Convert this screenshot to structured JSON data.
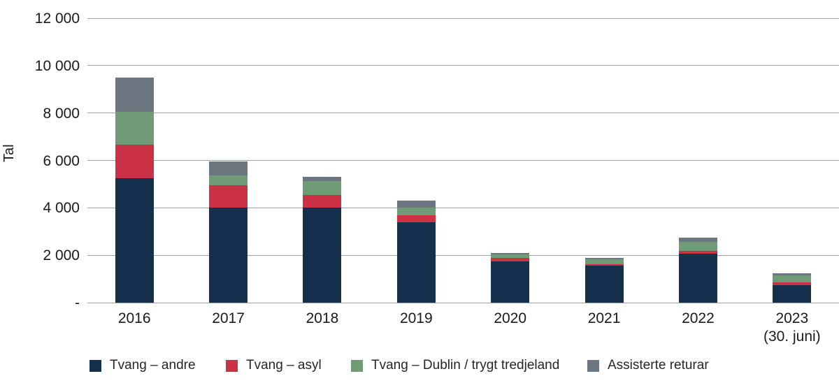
{
  "chart_data": {
    "type": "bar",
    "stacked": true,
    "title": "",
    "xlabel": "",
    "ylabel": "Tal",
    "ylim": [
      0,
      12000
    ],
    "ytick_interval": 2000,
    "ytick_labels": [
      "-",
      "2 000",
      "4 000",
      "6 000",
      "8 000",
      "10 000",
      "12 000"
    ],
    "grid": true,
    "legend_position": "bottom",
    "categories": [
      {
        "label": "2016",
        "sublabel": ""
      },
      {
        "label": "2017",
        "sublabel": ""
      },
      {
        "label": "2018",
        "sublabel": ""
      },
      {
        "label": "2019",
        "sublabel": ""
      },
      {
        "label": "2020",
        "sublabel": ""
      },
      {
        "label": "2021",
        "sublabel": ""
      },
      {
        "label": "2022",
        "sublabel": ""
      },
      {
        "label": "2023",
        "sublabel": "(30. juni)"
      }
    ],
    "series": [
      {
        "name": "Tvang – andre",
        "color": "#14304E",
        "values": [
          5250,
          4000,
          4000,
          3400,
          1750,
          1560,
          2050,
          750
        ]
      },
      {
        "name": "Tvang – asyl",
        "color": "#CB3245",
        "values": [
          1400,
          950,
          530,
          300,
          150,
          70,
          130,
          110
        ]
      },
      {
        "name": "Tvang – Dublin / trygt tredjeland",
        "color": "#6F9B77",
        "values": [
          1400,
          420,
          590,
          300,
          150,
          190,
          380,
          300
        ]
      },
      {
        "name": "Assisterte returar",
        "color": "#6C7680",
        "values": [
          1450,
          580,
          180,
          300,
          50,
          80,
          170,
          80
        ]
      }
    ],
    "colors": {
      "gridline": "#a0a0a0",
      "text": "#1a1a1a"
    },
    "totals": [
      9500,
      5950,
      5300,
      4300,
      2100,
      1900,
      2730,
      1240
    ]
  }
}
